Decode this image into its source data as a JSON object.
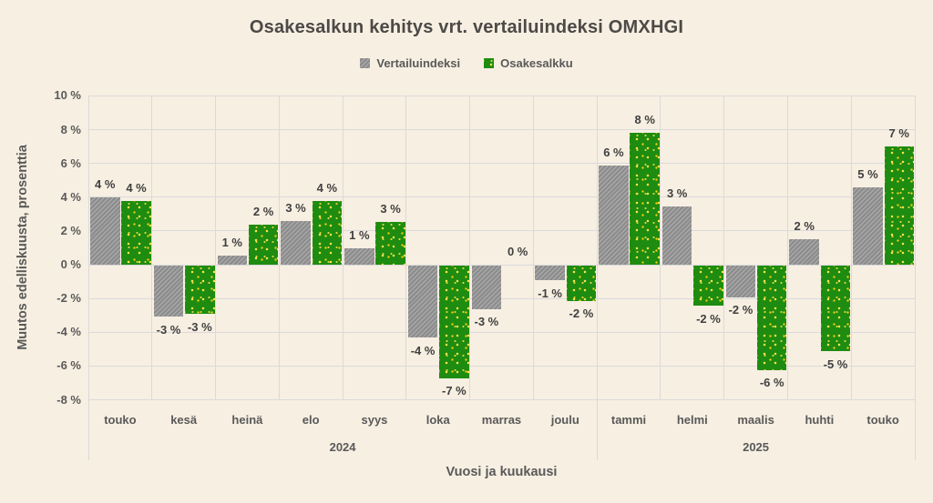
{
  "title": "Osakesalkun kehitys vrt. vertailuindeksi OMXHGI",
  "colors": {
    "background": "#f7efe2",
    "gridline": "#dadada",
    "text": "#595959",
    "data_label": "#404040",
    "benchmark_bar": "#8d8d8d",
    "portfolio_bar": "#1e8c10",
    "portfolio_dot": "#ffe14d"
  },
  "chart_data": {
    "type": "bar",
    "title": "Osakesalkun kehitys vrt. vertailuindeksi OMXHGI",
    "xlabel": "Vuosi ja kuukausi",
    "ylabel": "Muutos edelliskuusta, prosenttia",
    "ylim": [
      -8,
      10
    ],
    "ytick_step": 2,
    "ytick_suffix": " %",
    "grid": true,
    "legend_position": "top",
    "categories": [
      "touko",
      "kesä",
      "heinä",
      "elo",
      "syys",
      "loka",
      "marras",
      "joulu",
      "tammi",
      "helmi",
      "maalis",
      "huhti",
      "touko"
    ],
    "year_groups": [
      {
        "label": "2024",
        "from": 0,
        "to": 7
      },
      {
        "label": "2025",
        "from": 8,
        "to": 12
      }
    ],
    "series": [
      {
        "name": "Vertailuindeksi",
        "pattern": "gray-diagonal-hatch",
        "values": [
          4.0,
          -3.05,
          0.55,
          2.6,
          0.95,
          -4.3,
          -2.6,
          -0.9,
          5.9,
          3.45,
          -1.9,
          1.5,
          4.6
        ],
        "labels": [
          "4 %",
          "-3 %",
          "1 %",
          "3 %",
          "1 %",
          "-4 %",
          "-3 %",
          "-1 %",
          "6 %",
          "3 %",
          "-2 %",
          "2 %",
          "5 %"
        ]
      },
      {
        "name": "Osakesalkku",
        "pattern": "green-yellow-dots",
        "values": [
          3.8,
          -2.9,
          2.35,
          3.8,
          2.55,
          -6.7,
          0.0,
          -2.1,
          7.8,
          -2.4,
          -6.2,
          -5.1,
          7.0
        ],
        "labels": [
          "4 %",
          "-3 %",
          "2 %",
          "4 %",
          "3 %",
          "-7 %",
          "0 %",
          "-2 %",
          "8 %",
          "-2 %",
          "-6 %",
          "-5 %",
          "7 %"
        ]
      }
    ]
  }
}
